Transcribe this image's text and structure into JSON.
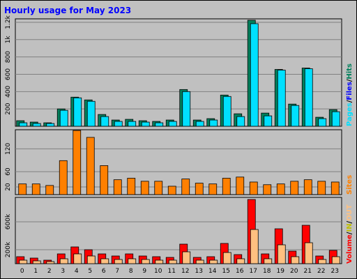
{
  "chart_data": [
    {
      "type": "bar",
      "title": "Hourly usage for May 2023",
      "categories": [
        "0",
        "1",
        "2",
        "3",
        "4",
        "5",
        "6",
        "7",
        "8",
        "9",
        "10",
        "11",
        "12",
        "13",
        "14",
        "15",
        "16",
        "17",
        "18",
        "19",
        "20",
        "21",
        "22",
        "23"
      ],
      "series": [
        {
          "name": "Hits",
          "color": "#00805c",
          "values": [
            64,
            48,
            40,
            200,
            336,
            304,
            136,
            72,
            80,
            64,
            56,
            72,
            424,
            72,
            88,
            360,
            144,
            1224,
            152,
            656,
            256,
            672,
            104,
            192
          ]
        },
        {
          "name": "Pages",
          "color": "#00e0ff",
          "values": [
            40,
            32,
            32,
            184,
            328,
            288,
            112,
            56,
            56,
            48,
            40,
            56,
            400,
            56,
            72,
            344,
            112,
            1184,
            120,
            648,
            240,
            664,
            88,
            168
          ]
        }
      ],
      "files_label": "Files",
      "files_color": "#0000ff",
      "separator": "/",
      "ylim": [
        0,
        1240
      ],
      "yticks": [
        200,
        400,
        600,
        800,
        {
          "value": 1000,
          "label": "1k"
        },
        {
          "value": 1200,
          "label": "1.2k"
        }
      ],
      "grid": true
    },
    {
      "type": "bar",
      "series": [
        {
          "name": "Sites",
          "color": "#ff8000",
          "values": [
            28,
            28,
            24,
            89,
            168,
            150,
            76,
            39,
            43,
            35,
            35,
            22,
            41,
            30,
            28,
            43,
            46,
            33,
            26,
            28,
            35,
            39,
            35,
            33
          ]
        }
      ],
      "ylim": [
        0,
        170
      ],
      "yticks": [
        20,
        60,
        120
      ],
      "grid": true
    },
    {
      "type": "bar",
      "series": [
        {
          "name": "Volume",
          "color": "#ff0000",
          "values": [
            100000,
            80000,
            50000,
            140000,
            240000,
            200000,
            140000,
            110000,
            140000,
            110000,
            100000,
            90000,
            280000,
            90000,
            100000,
            290000,
            130000,
            920000,
            140000,
            500000,
            180000,
            550000,
            110000,
            190000
          ]
        },
        {
          "name": "OUT",
          "color": "#ffc080",
          "values": [
            50000,
            40000,
            30000,
            70000,
            140000,
            110000,
            70000,
            60000,
            70000,
            60000,
            50000,
            50000,
            170000,
            50000,
            50000,
            160000,
            70000,
            490000,
            70000,
            270000,
            100000,
            300000,
            60000,
            100000
          ]
        }
      ],
      "in_label": "IN",
      "in_color": "#c0c000",
      "separator": "/",
      "ylim": [
        0,
        950000
      ],
      "yticks": [
        {
          "value": 200000,
          "label": "200k"
        },
        {
          "value": 600000,
          "label": "600k"
        }
      ],
      "grid": true
    }
  ]
}
